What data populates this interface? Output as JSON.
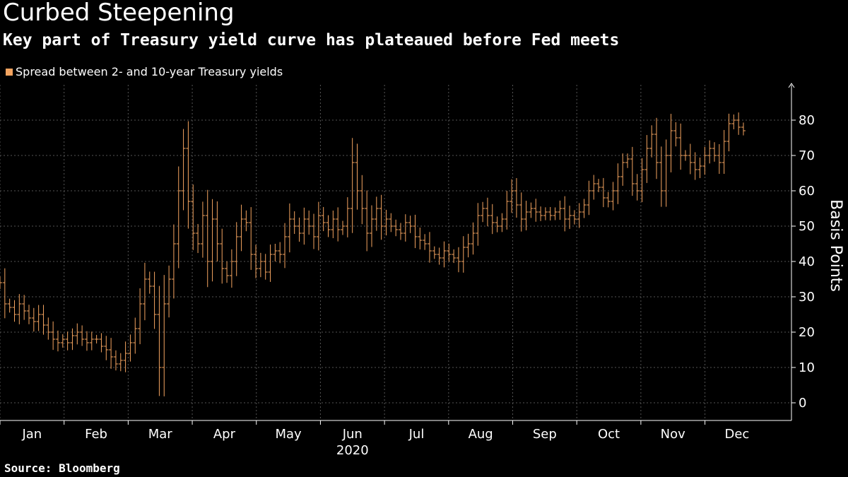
{
  "title": "Curbed Steepening",
  "subtitle": "Key part of Treasury yield curve has plateaued before Fed meets",
  "source": "Source: Bloomberg",
  "colors": {
    "series": "#f4a460",
    "grid": "#555555",
    "background": "#000000",
    "text": "#ffffff"
  },
  "chart_data": {
    "type": "line",
    "style": "ohlc-bars",
    "legend": [
      "Spread between 2- and 10-year Treasury yields"
    ],
    "legend_position": "top-left",
    "ylabel": "Basis Points",
    "ylabel_side": "right",
    "ylim": [
      -5,
      90
    ],
    "yticks": [
      0,
      10,
      20,
      30,
      40,
      50,
      60,
      70,
      80
    ],
    "grid": true,
    "x_year": "2020",
    "months": [
      "Jan",
      "Feb",
      "Mar",
      "Apr",
      "May",
      "Jun",
      "Jul",
      "Aug",
      "Sep",
      "Oct",
      "Nov",
      "Dec"
    ],
    "series": [
      {
        "name": "Spread between 2- and 10-year Treasury yields",
        "values": [
          34,
          28,
          27,
          25,
          28,
          26,
          24,
          23,
          25,
          22,
          20,
          18,
          17,
          18,
          17,
          19,
          20,
          18,
          17,
          18,
          18,
          16,
          15,
          13,
          11,
          12,
          14,
          17,
          21,
          28,
          35,
          33,
          25,
          10,
          28,
          35,
          45,
          60,
          72,
          57,
          48,
          45,
          53,
          40,
          52,
          45,
          38,
          36,
          40,
          47,
          52,
          51,
          42,
          38,
          40,
          37,
          42,
          43,
          42,
          47,
          52,
          50,
          48,
          52,
          50,
          47,
          53,
          51,
          49,
          52,
          49,
          50,
          55,
          68,
          60,
          55,
          48,
          52,
          55,
          50,
          52,
          50,
          49,
          48,
          51,
          50,
          47,
          46,
          45,
          43,
          42,
          41,
          43,
          42,
          41,
          40,
          44,
          45,
          48,
          53,
          55,
          53,
          51,
          50,
          52,
          57,
          60,
          56,
          52,
          54,
          55,
          54,
          53,
          54,
          53,
          54,
          55,
          52,
          53,
          52,
          54,
          56,
          60,
          62,
          61,
          58,
          57,
          60,
          64,
          68,
          69,
          62,
          60,
          66,
          72,
          76,
          68,
          60,
          70,
          77,
          75,
          70,
          70,
          68,
          66,
          67,
          70,
          72,
          70,
          68,
          74,
          79,
          80,
          78,
          77
        ]
      }
    ]
  }
}
